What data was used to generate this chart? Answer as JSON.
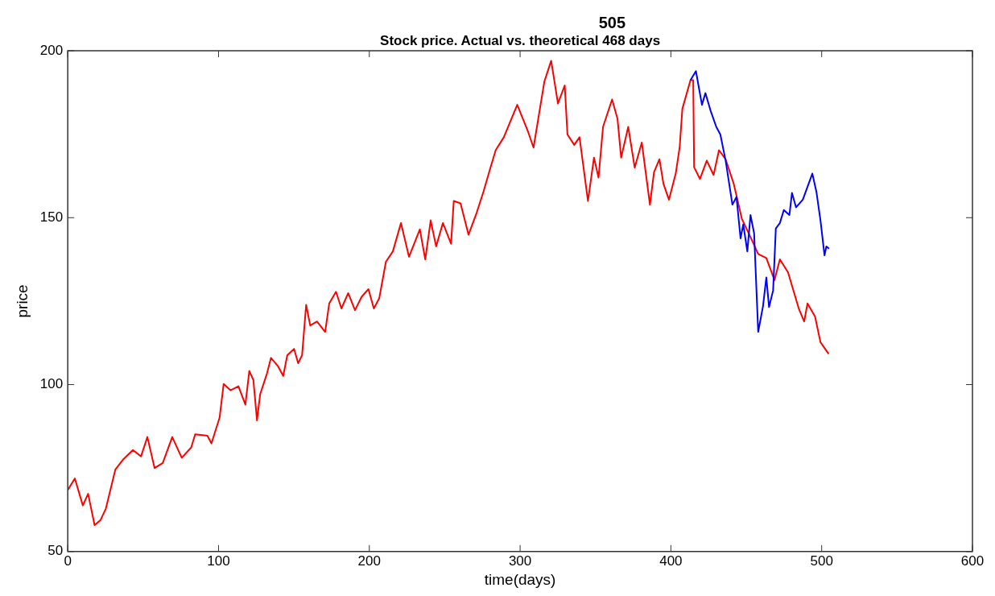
{
  "chart_data": {
    "type": "line",
    "title": "Stock price. Actual vs. theoretical 468 days",
    "xlabel": "time(days)",
    "ylabel": "price",
    "annotations": [
      "505"
    ],
    "xlim": [
      0,
      600
    ],
    "xticks": [
      0,
      100,
      200,
      300,
      400,
      500,
      600
    ],
    "ylim": [
      50,
      200
    ],
    "yticks": [
      50,
      100,
      150,
      200
    ],
    "grid": false,
    "legend": false,
    "marker": "none",
    "line_style": "solid",
    "series": [
      {
        "color": "#0000ff",
        "x": [
          413,
          416.6,
          420.6,
          422.9,
          426.5,
          430.1,
          432.8,
          436.3,
          440.8,
          443.5,
          446.2,
          448,
          450.7,
          452.8,
          455.2,
          457.9,
          461.1,
          463.3,
          465.1,
          467.8,
          469.6,
          472.3,
          474.9,
          478.6,
          480.3,
          483,
          487.5,
          493.8,
          496.5,
          499.2,
          501.9,
          503.1,
          504.9
        ],
        "values": [
          191.2,
          193.9,
          183.8,
          187.3,
          181.8,
          177.2,
          174.9,
          167.1,
          153.9,
          156.2,
          143.8,
          148,
          139.9,
          150.8,
          145.3,
          115.8,
          123.5,
          132.1,
          123.2,
          128.2,
          146.8,
          148.4,
          152.3,
          150.8,
          157.4,
          153.1,
          155.4,
          163.2,
          157.8,
          149.2,
          138.7,
          141.4,
          140.7
        ]
      },
      {
        "color": "#ff0000",
        "x": [
          0,
          4.7,
          10,
          13.5,
          17.8,
          21.7,
          25.3,
          31.6,
          37,
          43.2,
          48.6,
          52.8,
          57.6,
          63,
          69.3,
          75.6,
          81.9,
          84.5,
          92.6,
          95.3,
          100.7,
          103.4,
          107.9,
          113.2,
          117.8,
          120.4,
          123.1,
          125.5,
          127.6,
          132.1,
          134.8,
          139.3,
          142.9,
          145.6,
          150.1,
          152.8,
          155.4,
          158.1,
          160.8,
          165.3,
          170.7,
          173.4,
          177.9,
          181.5,
          186,
          190.5,
          194.9,
          199.4,
          203,
          206.6,
          211,
          215.6,
          221,
          226.3,
          233.5,
          237.1,
          240.7,
          244.3,
          248.8,
          254.2,
          256,
          260.5,
          265.8,
          271.2,
          275.7,
          280.2,
          283.8,
          289.2,
          298.1,
          305.3,
          308.9,
          316.1,
          320.6,
          325.1,
          329.6,
          331.4,
          335.9,
          339.4,
          345,
          349,
          352,
          355,
          361,
          364.6,
          367,
          371.7,
          376,
          380.7,
          386.1,
          388.8,
          392.4,
          395.1,
          398.7,
          403.2,
          405.8,
          407.6,
          413,
          414.8,
          415.4,
          419.3,
          423.8,
          428.3,
          431.9,
          436.3,
          441.7,
          447.1,
          452.5,
          457.9,
          463.3,
          468.7,
          472.3,
          477.7,
          484.8,
          488.4,
          490.6,
          495.6,
          499.2,
          504.6
        ],
        "values": [
          68.4,
          71.9,
          63.8,
          67.3,
          57.9,
          59.4,
          62.9,
          74.6,
          77.7,
          80.4,
          78.5,
          84.3,
          75,
          76.5,
          84.3,
          78.1,
          81.2,
          85.1,
          84.7,
          82.4,
          90.1,
          100.2,
          98.3,
          99.5,
          94,
          104.1,
          101.4,
          89.3,
          97.1,
          103.3,
          108,
          105.6,
          102.6,
          108.8,
          110.7,
          106.4,
          108.8,
          123.9,
          117.7,
          118.9,
          115.8,
          124.3,
          127.8,
          122.8,
          127.4,
          122.3,
          126.3,
          128.6,
          122.8,
          125.9,
          136.8,
          139.9,
          148.4,
          138.3,
          146.5,
          137.5,
          149.2,
          141.4,
          148.4,
          142.2,
          155,
          154.3,
          144.9,
          151.5,
          157.8,
          164.8,
          170.2,
          174.1,
          183.8,
          175.7,
          171,
          190.8,
          197,
          184.2,
          189.6,
          174.9,
          171.8,
          174.1,
          155,
          168,
          162,
          177.2,
          185.4,
          179.6,
          168,
          177.2,
          165,
          172.5,
          153.9,
          163.6,
          167.5,
          160.1,
          155.4,
          163.2,
          171,
          182.6,
          191.2,
          191.2,
          165.1,
          161.6,
          167.1,
          162.8,
          170.2,
          167.5,
          160.1,
          149.6,
          144.5,
          139.1,
          137.9,
          131.3,
          137.5,
          133.6,
          122.8,
          118.9,
          124.3,
          120.4,
          112.7,
          109.2
        ]
      }
    ]
  }
}
